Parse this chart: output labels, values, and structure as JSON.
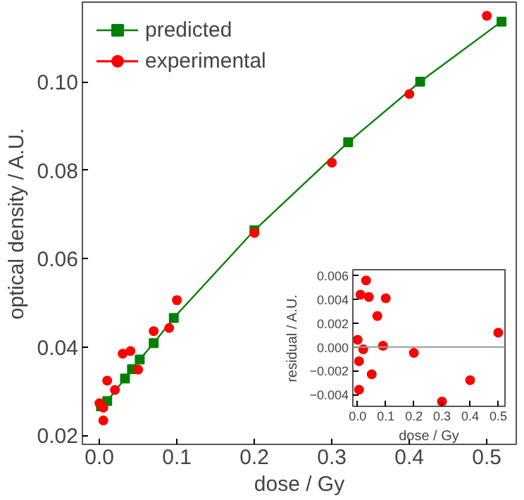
{
  "chart_data": [
    {
      "type": "line",
      "xlabel": "dose / Gy",
      "ylabel": "optical density / A.U.",
      "xlim": [
        -0.022,
        0.538
      ],
      "ylim": [
        0.018,
        0.118
      ],
      "xticks": [
        {
          "value": 0,
          "label": "0.0"
        },
        0.1,
        0.2,
        0.3,
        0.4,
        0.5
      ],
      "yticks": [
        0.02,
        0.04,
        0.06,
        0.08,
        {
          "value": 0.1,
          "label": "0.10"
        }
      ],
      "grid": false,
      "legend": "top left",
      "series": [
        {
          "name": "predicted",
          "type": "line",
          "color": "#008000",
          "marker": "square",
          "x": [
            0.002,
            0.01,
            0.033,
            0.042,
            0.052,
            0.07,
            0.096,
            0.2,
            0.321,
            0.414,
            0.519
          ],
          "values": [
            0.0266,
            0.0278,
            0.0329,
            0.035,
            0.0372,
            0.0409,
            0.0466,
            0.0664,
            0.0863,
            0.1,
            0.1136
          ]
        },
        {
          "name": "experimental",
          "type": "scatter",
          "color": "#ff0000",
          "marker": "circle",
          "x": [
            0.0,
            0.005,
            0.005,
            0.01,
            0.02,
            0.03,
            0.04,
            0.05,
            0.07,
            0.09,
            0.1,
            0.2,
            0.3,
            0.4,
            0.5
          ],
          "values": [
            0.0273,
            0.0263,
            0.0234,
            0.0324,
            0.0303,
            0.0385,
            0.0391,
            0.0349,
            0.0436,
            0.0443,
            0.0506,
            0.0658,
            0.0817,
            0.0972,
            0.1149
          ],
          "errors": [
            0.0005,
            0.0005,
            0.0005,
            0.0005,
            0.0005,
            0.0005,
            0.0005,
            0.0005,
            0.0005,
            0.0005,
            0.0008,
            0.0005,
            0.0005,
            0.0005,
            0.0005
          ]
        }
      ]
    },
    {
      "type": "scatter",
      "xlabel": "dose / Gy",
      "ylabel": "residual / A.U.",
      "xlim": [
        -0.017,
        0.524
      ],
      "ylim": [
        -0.005,
        0.0065
      ],
      "xticks": [
        {
          "value": 0,
          "label": "0.0"
        },
        0.1,
        0.2,
        0.3,
        0.4,
        0.5
      ],
      "yticks": [
        -0.004,
        -0.002,
        {
          "value": 0,
          "label": "0.000"
        },
        0.002,
        0.004,
        0.006
      ],
      "grid": false,
      "marker": "circle",
      "ref_lines": [
        {
          "axis": "y",
          "value": 0,
          "color": "#999999"
        }
      ],
      "series": [
        {
          "color": "#ff0000",
          "x": [
            0.0,
            0.01,
            0.005,
            0.005,
            0.02,
            0.03,
            0.04,
            0.05,
            0.07,
            0.09,
            0.1,
            0.2,
            0.3,
            0.4,
            0.5
          ],
          "values": [
            0.0006,
            0.0044,
            -0.0012,
            -0.0036,
            -0.0002,
            0.0056,
            0.0042,
            -0.0023,
            0.0026,
            0.0001,
            0.0041,
            -0.0005,
            -0.0046,
            -0.0028,
            0.0012
          ]
        }
      ]
    }
  ]
}
